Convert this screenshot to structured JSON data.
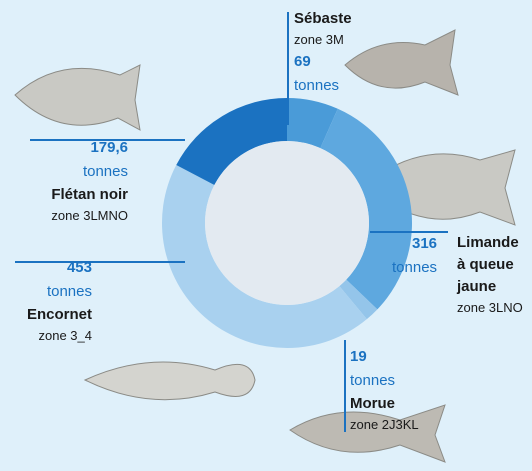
{
  "chart_data": {
    "type": "donut",
    "categories": [
      "Sébaste",
      "Limande à queue jaune",
      "Morue",
      "Encornet",
      "Flétan noir"
    ],
    "zones": [
      "zone 3M",
      "zone 3LNO",
      "zone 2J3KL",
      "zone 3_4",
      "zone 3LMNO"
    ],
    "values": [
      69,
      316,
      19,
      453,
      179.6
    ],
    "value_labels": [
      "69",
      "316",
      "19",
      "453",
      "179,6"
    ],
    "unit": "tonnes",
    "colors": [
      "#4a9bd8",
      "#5ea8df",
      "#94c5ea",
      "#a9d1ef",
      "#1b72c1"
    ]
  }
}
